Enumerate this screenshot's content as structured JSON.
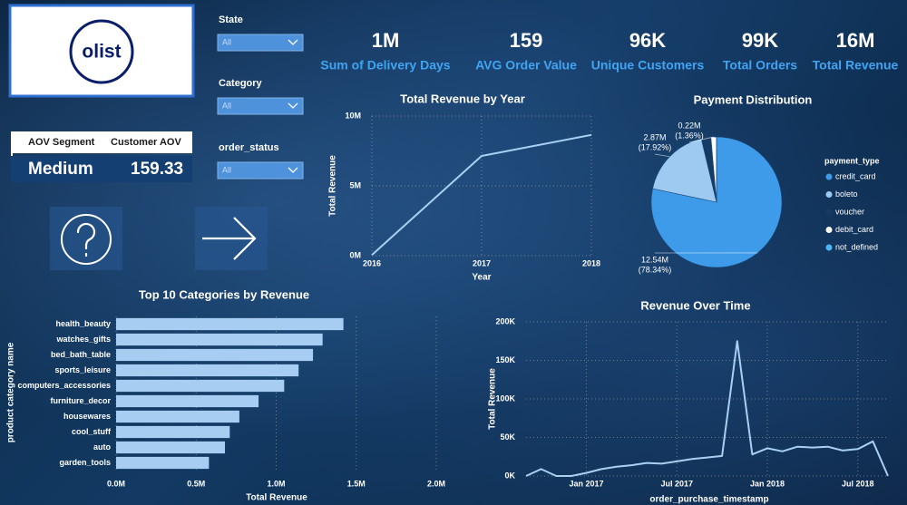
{
  "logo": {
    "text": "olist"
  },
  "slicers": [
    {
      "label": "State",
      "value": "All"
    },
    {
      "label": "Category",
      "value": "All"
    },
    {
      "label": "order_status",
      "value": "All"
    }
  ],
  "kpis": [
    {
      "value": "1M",
      "label": "Sum of Delivery Days"
    },
    {
      "value": "159",
      "label": "AVG Order Value"
    },
    {
      "value": "96K",
      "label": "Unique Customers"
    },
    {
      "value": "99K",
      "label": "Total Orders"
    },
    {
      "value": "16M",
      "label": "Total Revenue"
    }
  ],
  "aov_table": {
    "headers": [
      "AOV Segment",
      "Customer AOV"
    ],
    "row": [
      "Medium",
      "159.33"
    ]
  },
  "chart_data": [
    {
      "type": "line",
      "title": "Total Revenue by Year",
      "x_label": "Year",
      "y_label": "Total Revenue",
      "x": [
        2016,
        2017,
        2018
      ],
      "values": [
        50000,
        7140000,
        8650000
      ],
      "color": "#a9d0f2",
      "xlim": [
        2016,
        2018
      ],
      "xticks": [
        2016,
        2017,
        2018
      ],
      "ylim": [
        0,
        10000000
      ],
      "yticks": [
        {
          "value": 0,
          "label": "0M"
        },
        {
          "value": 5000000,
          "label": "5M"
        },
        {
          "value": 10000000,
          "label": "10M"
        }
      ],
      "grid": true
    },
    {
      "type": "pie",
      "title": "Payment Distribution",
      "legend_title": "payment_type",
      "categories": [
        "credit_card",
        "boleto",
        "voucher",
        "debit_card",
        "not_defined"
      ],
      "values": [
        12540000,
        2870000,
        380000,
        220000,
        0
      ],
      "value_labels": [
        "12.54M",
        "2.87M",
        null,
        "0.22M",
        null
      ],
      "percent_labels": [
        "(78.34%)",
        "(17.92%)",
        null,
        "(1.36%)",
        null
      ],
      "colors": [
        "#3d9bea",
        "#9ec9f0",
        "#163a66",
        "#ffffff",
        "#4cb5f5"
      ]
    },
    {
      "type": "bar",
      "orientation": "horizontal",
      "title": "Top 10 Categories by Revenue",
      "x_label": "Total Revenue",
      "y_label": "product category name",
      "categories": [
        "health_beauty",
        "watches_gifts",
        "bed_bath_table",
        "sports_leisure",
        "computers_accessories",
        "furniture_decor",
        "housewares",
        "cool_stuff",
        "auto",
        "garden_tools"
      ],
      "values": [
        1420000,
        1290000,
        1230000,
        1140000,
        1050000,
        890000,
        770000,
        710000,
        680000,
        580000
      ],
      "color": "#a7cdf2",
      "xlim": [
        0,
        2000000
      ],
      "xticks": [
        {
          "value": 0,
          "label": "0.0M"
        },
        {
          "value": 500000,
          "label": "0.5M"
        },
        {
          "value": 1000000,
          "label": "1.0M"
        },
        {
          "value": 1500000,
          "label": "1.5M"
        },
        {
          "value": 2000000,
          "label": "2.0M"
        }
      ],
      "grid": true
    },
    {
      "type": "line",
      "title": "Revenue Over Time",
      "x_label": "order_purchase_timestamp",
      "y_label": "Total Revenue",
      "x": [
        "2016-09",
        "2016-10",
        "2016-11",
        "2016-12",
        "2017-01",
        "2017-02",
        "2017-03",
        "2017-04",
        "2017-05",
        "2017-06",
        "2017-07",
        "2017-08",
        "2017-09",
        "2017-10",
        "2017-11",
        "2017-12",
        "2018-01",
        "2018-02",
        "2018-03",
        "2018-04",
        "2018-05",
        "2018-06",
        "2018-07",
        "2018-08",
        "2018-09"
      ],
      "values": [
        0,
        9000,
        0,
        0,
        4000,
        9000,
        12000,
        14000,
        17000,
        16000,
        19000,
        22000,
        24000,
        26000,
        175000,
        28000,
        36000,
        32000,
        38000,
        37000,
        38000,
        33000,
        35000,
        45000,
        0
      ],
      "color": "#a9d0f2",
      "xlim": [
        "2016-09",
        "2018-09"
      ],
      "xticks": [
        {
          "value": "2017-01",
          "label": "Jan 2017"
        },
        {
          "value": "2017-07",
          "label": "Jul 2017"
        },
        {
          "value": "2018-01",
          "label": "Jan 2018"
        },
        {
          "value": "2018-07",
          "label": "Jul 2018"
        }
      ],
      "ylim": [
        0,
        200000
      ],
      "yticks": [
        {
          "value": 0,
          "label": "0K"
        },
        {
          "value": 50000,
          "label": "50K"
        },
        {
          "value": 100000,
          "label": "100K"
        },
        {
          "value": 150000,
          "label": "150K"
        },
        {
          "value": 200000,
          "label": "200K"
        }
      ],
      "grid": true
    }
  ]
}
